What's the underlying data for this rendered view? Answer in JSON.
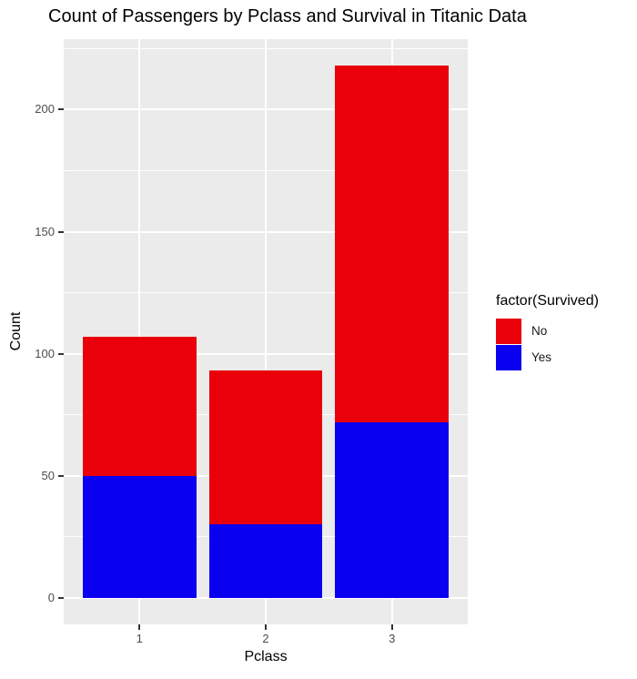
{
  "chart_data": {
    "type": "bar",
    "stacked": true,
    "title": "Count of Passengers by Pclass and Survival in Titanic Data",
    "xlabel": "Pclass",
    "ylabel": "Count",
    "categories": [
      "1",
      "2",
      "3"
    ],
    "series": [
      {
        "name": "No",
        "color": "#E9000A",
        "values": [
          57,
          63,
          146
        ]
      },
      {
        "name": "Yes",
        "color": "#0A00F0",
        "values": [
          50,
          30,
          72
        ]
      }
    ],
    "stack_order_bottom_to_top": [
      "Yes",
      "No"
    ],
    "totals": [
      107,
      93,
      218
    ],
    "y_ticks": [
      0,
      50,
      100,
      150,
      200
    ],
    "y_minor_gridlines": [
      25,
      75,
      125,
      175,
      225
    ],
    "ylim": [
      0,
      218
    ],
    "grid": true,
    "panel_background": "#EBEBEB",
    "gridline_color": "#FFFFFF",
    "tick_mark_color": "#333333",
    "tick_label_color": "#4D4D4D",
    "legend": {
      "title": "factor(Survived)",
      "position": "right",
      "entries": [
        {
          "label": "No",
          "color": "#E9000A"
        },
        {
          "label": "Yes",
          "color": "#0A00F0"
        }
      ]
    }
  }
}
